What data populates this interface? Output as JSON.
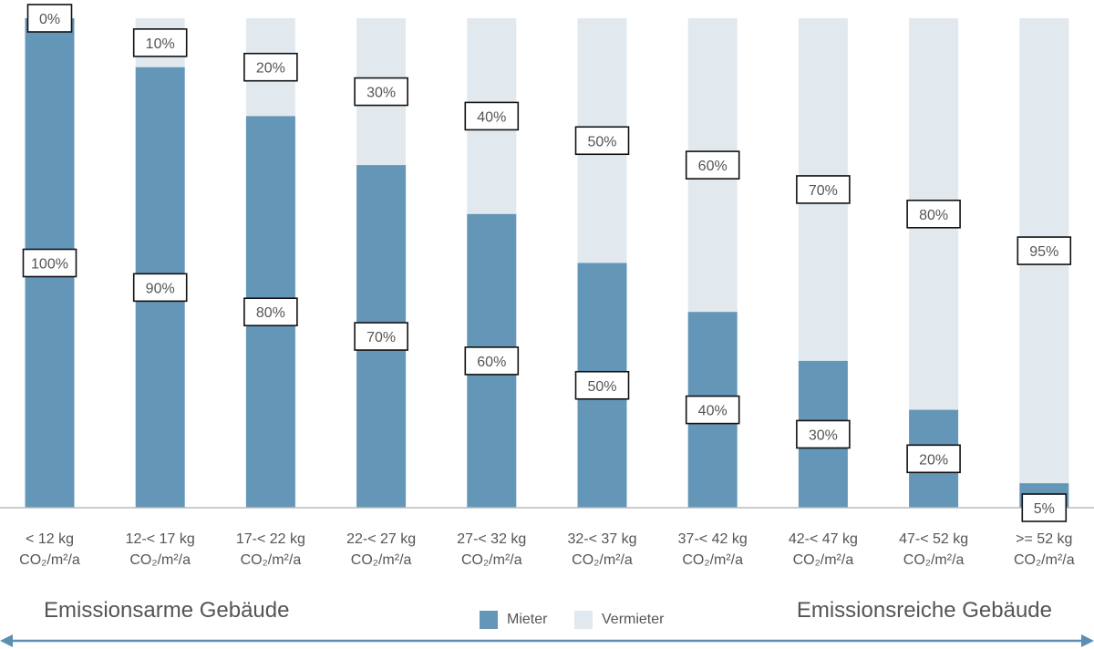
{
  "chart_data": {
    "type": "bar",
    "stacked": true,
    "categories": [
      [
        "< 12 kg",
        "CO₂/m²/a"
      ],
      [
        "12-< 17 kg",
        "CO₂/m²/a"
      ],
      [
        "17-< 22 kg",
        "CO₂/m²/a"
      ],
      [
        "22-< 27 kg",
        "CO₂/m²/a"
      ],
      [
        "27-< 32 kg",
        "CO₂/m²/a"
      ],
      [
        "32-< 37 kg",
        "CO₂/m²/a"
      ],
      [
        "37-< 42 kg",
        "CO₂/m²/a"
      ],
      [
        "42-< 47 kg",
        "CO₂/m²/a"
      ],
      [
        "47-< 52 kg",
        "CO₂/m²/a"
      ],
      [
        ">= 52 kg",
        "CO₂/m²/a"
      ]
    ],
    "series": [
      {
        "name": "Mieter",
        "color": "#6496b8",
        "values": [
          100,
          90,
          80,
          70,
          60,
          50,
          40,
          30,
          20,
          5
        ]
      },
      {
        "name": "Vermieter",
        "color": "#e1e9ef",
        "values": [
          0,
          10,
          20,
          30,
          40,
          50,
          60,
          70,
          80,
          95
        ]
      }
    ],
    "data_labels": {
      "Mieter": [
        "100%",
        "90%",
        "80%",
        "70%",
        "60%",
        "50%",
        "40%",
        "30%",
        "20%",
        "5%"
      ],
      "Vermieter": [
        "0%",
        "10%",
        "20%",
        "30%",
        "40%",
        "50%",
        "60%",
        "70%",
        "80%",
        "95%"
      ]
    },
    "ylim": [
      0,
      100
    ],
    "grid": false,
    "legend_position": "bottom-center"
  },
  "footer": {
    "left_caption": "Emissionsarme Gebäude",
    "right_caption": "Emissionsreiche Gebäude",
    "legend": [
      {
        "label": "Mieter",
        "color": "#6496b8"
      },
      {
        "label": "Vermieter",
        "color": "#e1e9ef"
      }
    ]
  },
  "colors": {
    "axis": "#bbbbbb",
    "arrow": "#5a8eb3",
    "label_border": "#111111"
  }
}
